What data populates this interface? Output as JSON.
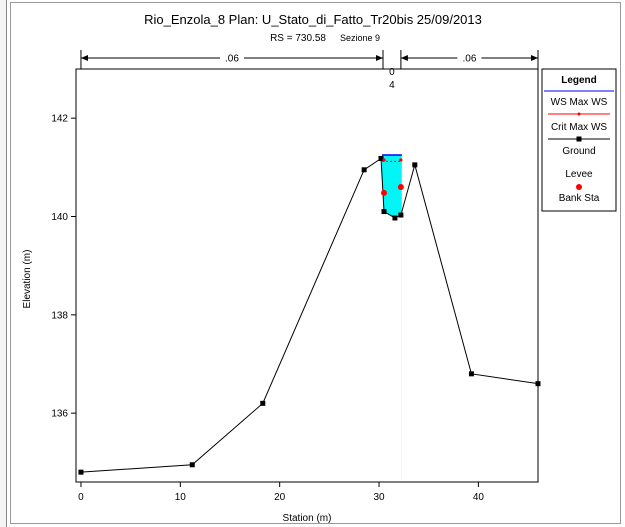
{
  "chart_data": {
    "type": "line",
    "title": "Rio_Enzola_8        Plan: U_Stato_di_Fatto_Tr20bis    25/09/2013",
    "subtitle_rs": "RS = 730.58",
    "subtitle_sezione": "Sezione 9",
    "xlabel": "Station (m)",
    "ylabel": "Elevation (m)",
    "xlim": [
      -0.5,
      46
    ],
    "ylim": [
      134.6,
      143.0
    ],
    "xticks": [
      0,
      10,
      20,
      30,
      40
    ],
    "yticks": [
      136,
      138,
      140,
      142
    ],
    "grid": false,
    "legend_position": "right",
    "legend": {
      "title": "Legend",
      "items": [
        "WS Max WS",
        "Crit Max WS",
        "Ground",
        "Levee",
        "Bank Sta"
      ]
    },
    "manning": {
      "left_label": ".06",
      "center_label_top": "0",
      "center_label_bottom": "4",
      "right_label": ".06",
      "left_start": 0,
      "left_end": 30.4,
      "right_start": 32.2,
      "right_end": 46
    },
    "series": [
      {
        "name": "Ground",
        "x": [
          0,
          11.2,
          18.3,
          28.5,
          30.2,
          30.5,
          31.6,
          32.2,
          33.6,
          39.3,
          46
        ],
        "y": [
          134.8,
          134.95,
          136.2,
          140.95,
          141.18,
          140.1,
          139.97,
          140.03,
          141.05,
          136.8,
          136.6
        ]
      },
      {
        "name": "WS Max WS",
        "level": 141.25,
        "x_range": [
          30.3,
          32.3
        ]
      },
      {
        "name": "Crit Max WS",
        "level": 141.12,
        "x_range": [
          30.3,
          32.3
        ]
      },
      {
        "name": "Levee",
        "x": [
          30.5,
          32.2
        ],
        "y": [
          140.48,
          140.6
        ]
      },
      {
        "name": "Bank Sta",
        "x": [
          30.5,
          32.2
        ],
        "y": [
          141.15,
          141.15
        ]
      }
    ],
    "colors": {
      "water_fill": "#00f5f5",
      "ws_line": "#0000ff",
      "crit_line": "#ff0000",
      "ground": "#000000",
      "levee": "#ff0000"
    }
  }
}
